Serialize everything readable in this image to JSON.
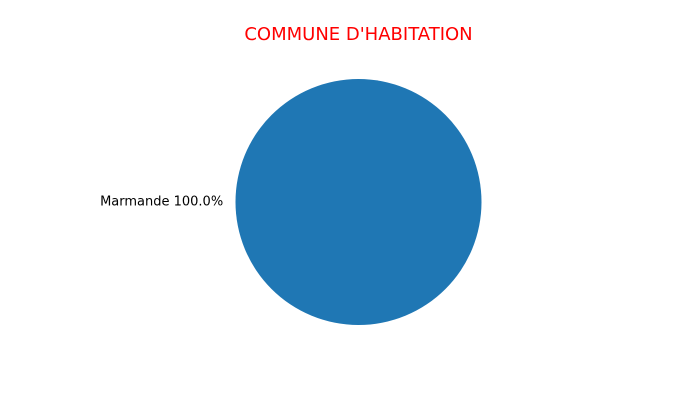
{
  "chart_data": {
    "type": "pie",
    "title": "COMMUNE D'HABITATION",
    "slices": [
      {
        "label": "Marmande",
        "value": 100.0,
        "percent_label": "100.0%",
        "color": "#1f77b4"
      }
    ]
  },
  "colors": {
    "title": "#ff0000",
    "background": "#ffffff"
  }
}
